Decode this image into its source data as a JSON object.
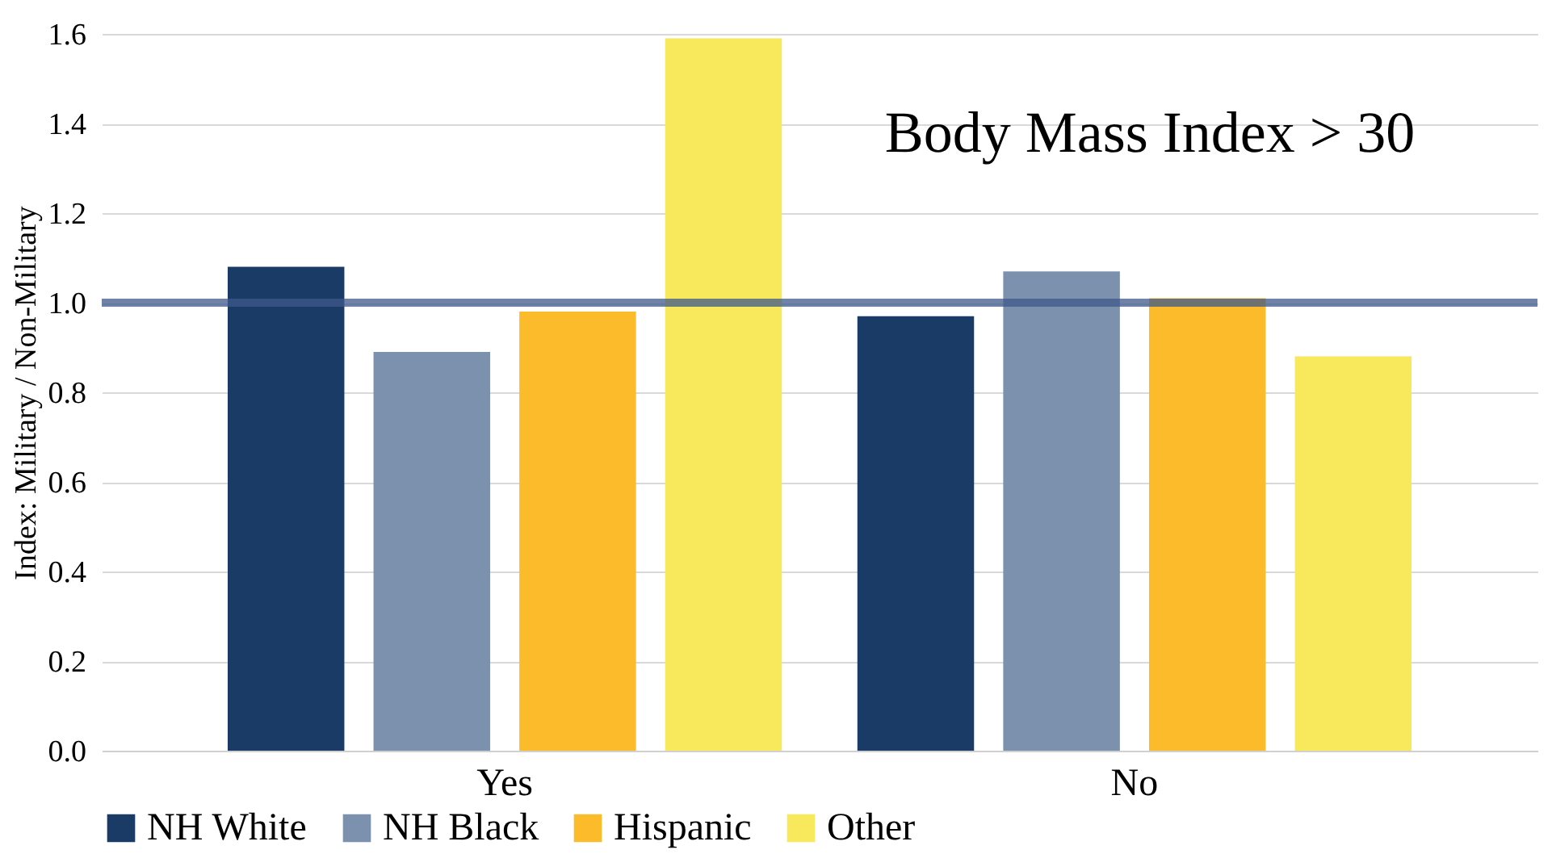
{
  "chart_data": {
    "type": "bar",
    "ylabel": "Index: Military / Non-Military",
    "categories": [
      "Yes",
      "No"
    ],
    "series": [
      {
        "name": "NH White",
        "color": "#1b3b67",
        "values": [
          1.08,
          0.97
        ]
      },
      {
        "name": "NH Black",
        "color": "#7b91ad",
        "values": [
          0.89,
          1.07
        ]
      },
      {
        "name": "Hispanic",
        "color": "#fbbb2a",
        "values": [
          0.98,
          1.01
        ]
      },
      {
        "name": "Other",
        "color": "#f7e85c",
        "values": [
          1.59,
          0.88
        ]
      }
    ],
    "ylim": [
      0,
      1.6
    ],
    "yticks": [
      {
        "value": 0,
        "label": "0.0"
      },
      {
        "value": 0.2,
        "label": "0.2"
      },
      {
        "value": 0.4,
        "label": "0.4"
      },
      {
        "value": 0.6,
        "label": "0.6"
      },
      {
        "value": 0.8,
        "label": "0.8"
      },
      {
        "value": 1,
        "label": "1.0"
      },
      {
        "value": 1.2,
        "label": "1.2"
      },
      {
        "value": 1.4,
        "label": "1.4"
      },
      {
        "value": 1.6,
        "label": "1.6"
      }
    ],
    "grid": "y",
    "legend": "bottom",
    "ref_lines": [
      {
        "axis": "y",
        "value": 1,
        "color": "#3e5a8a"
      }
    ],
    "annotations": [
      "Body Mass Index > 30"
    ]
  }
}
